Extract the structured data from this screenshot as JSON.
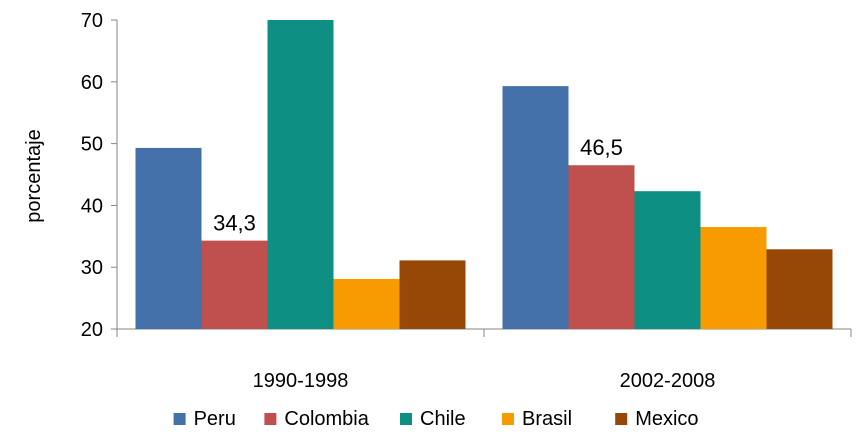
{
  "chart_data": {
    "type": "bar",
    "title": "",
    "xlabel": "",
    "ylabel": "porcentaje",
    "ylim": [
      20,
      70
    ],
    "yticks": [
      20,
      30,
      40,
      50,
      60,
      70
    ],
    "grid": false,
    "legend_position": "bottom",
    "categories": [
      "1990-1998",
      "2002-2008"
    ],
    "series": [
      {
        "name": "Peru",
        "color": "#4470AA",
        "values": [
          49.3,
          59.3
        ]
      },
      {
        "name": "Colombia",
        "color": "#C0504D",
        "values": [
          34.3,
          46.5
        ]
      },
      {
        "name": "Chile",
        "color": "#0E8F83",
        "values": [
          70.0,
          42.3
        ]
      },
      {
        "name": "Brasil",
        "color": "#F79B00",
        "values": [
          28.1,
          36.5
        ]
      },
      {
        "name": "Mexico",
        "color": "#974806",
        "values": [
          31.1,
          32.9
        ]
      }
    ],
    "data_labels": [
      {
        "series": 1,
        "category": 0,
        "text": "34,3"
      },
      {
        "series": 1,
        "category": 1,
        "text": "46,5"
      }
    ]
  }
}
